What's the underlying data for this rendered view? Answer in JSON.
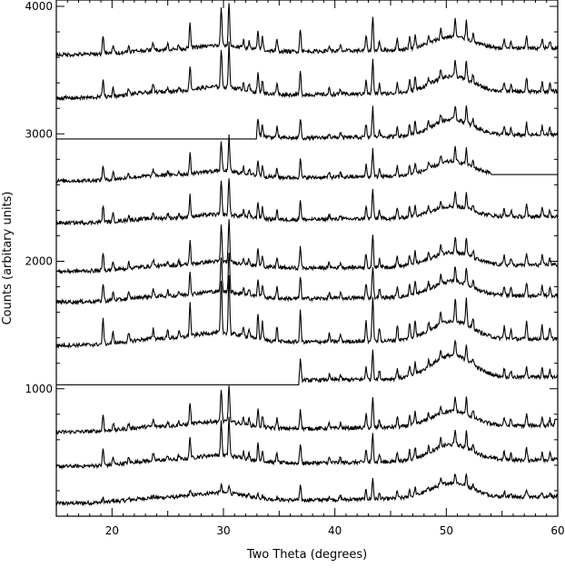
{
  "chart_data": {
    "type": "line",
    "xlabel": "Two Theta (degrees)",
    "ylabel": "Counts (arbitary units)",
    "xlim": [
      15,
      60
    ],
    "ylim": [
      0,
      4050
    ],
    "x_ticks": [
      "20",
      "30",
      "40",
      "50",
      "60"
    ],
    "y_ticks": [
      "1000",
      "2000",
      "3000",
      "4000"
    ],
    "grid": false,
    "color": "#000000",
    "peaks": [
      {
        "x": 19.2,
        "h": 1.0
      },
      {
        "x": 20.1,
        "h": 0.45
      },
      {
        "x": 21.5,
        "h": 0.3
      },
      {
        "x": 23.7,
        "h": 0.4
      },
      {
        "x": 25.0,
        "h": 0.3
      },
      {
        "x": 26.0,
        "h": 0.25
      },
      {
        "x": 27.0,
        "h": 1.3
      },
      {
        "x": 29.8,
        "h": 2.0
      },
      {
        "x": 30.5,
        "h": 2.3
      },
      {
        "x": 31.8,
        "h": 0.4
      },
      {
        "x": 32.3,
        "h": 0.35
      },
      {
        "x": 33.1,
        "h": 1.0
      },
      {
        "x": 33.5,
        "h": 0.7
      },
      {
        "x": 34.8,
        "h": 0.6
      },
      {
        "x": 36.9,
        "h": 1.2
      },
      {
        "x": 39.5,
        "h": 0.3
      },
      {
        "x": 40.5,
        "h": 0.3
      },
      {
        "x": 42.8,
        "h": 0.8
      },
      {
        "x": 43.4,
        "h": 1.8
      },
      {
        "x": 44.0,
        "h": 0.5
      },
      {
        "x": 45.6,
        "h": 0.6
      },
      {
        "x": 46.7,
        "h": 0.6
      },
      {
        "x": 47.2,
        "h": 0.7
      },
      {
        "x": 48.4,
        "h": 0.35
      },
      {
        "x": 49.5,
        "h": 0.5
      },
      {
        "x": 50.8,
        "h": 0.9
      },
      {
        "x": 51.8,
        "h": 1.0
      },
      {
        "x": 52.4,
        "h": 0.4
      },
      {
        "x": 55.2,
        "h": 0.5
      },
      {
        "x": 55.8,
        "h": 0.4
      },
      {
        "x": 57.2,
        "h": 0.7
      },
      {
        "x": 58.6,
        "h": 0.5
      },
      {
        "x": 59.3,
        "h": 0.4
      }
    ],
    "series": [
      {
        "baseline": 100,
        "peak_scale": 90,
        "hump": 120,
        "flat_until": null,
        "flat_after": null,
        "peak_set": "weak"
      },
      {
        "baseline": 390,
        "peak_scale": 130,
        "hump": 130,
        "flat_until": null,
        "flat_after": null,
        "peak_set": "full"
      },
      {
        "baseline": 660,
        "peak_scale": 130,
        "hump": 120,
        "flat_until": null,
        "flat_after": 59.7,
        "flat_level": 760,
        "peak_set": "full"
      },
      {
        "baseline": 1040,
        "peak_scale": 130,
        "hump": 180,
        "flat_until": 36.8,
        "flat_level": 1030,
        "flat_after": null,
        "peak_set": "full"
      },
      {
        "baseline": 1340,
        "peak_scale": 200,
        "hump": 150,
        "flat_until": null,
        "flat_after": null,
        "peak_set": "full"
      },
      {
        "baseline": 1680,
        "peak_scale": 140,
        "hump": 120,
        "flat_until": null,
        "flat_after": null,
        "peak_set": "full"
      },
      {
        "baseline": 1920,
        "peak_scale": 140,
        "hump": 110,
        "flat_until": null,
        "flat_after": null,
        "peak_set": "full"
      },
      {
        "baseline": 2300,
        "peak_scale": 130,
        "hump": 90,
        "flat_until": null,
        "flat_after": null,
        "peak_set": "full"
      },
      {
        "baseline": 2630,
        "peak_scale": 120,
        "hump": 110,
        "flat_until": null,
        "flat_after": 54.0,
        "flat_level": 2680,
        "peak_set": "full"
      },
      {
        "baseline": 2940,
        "peak_scale": 130,
        "hump": 130,
        "flat_until": 33.0,
        "flat_level": 2960,
        "flat_after": null,
        "peak_set": "full"
      },
      {
        "baseline": 3280,
        "peak_scale": 150,
        "hump": 130,
        "flat_until": null,
        "flat_after": null,
        "peak_set": "full"
      },
      {
        "baseline": 3620,
        "peak_scale": 150,
        "hump": 100,
        "flat_until": null,
        "flat_after": null,
        "peak_set": "full"
      }
    ]
  }
}
